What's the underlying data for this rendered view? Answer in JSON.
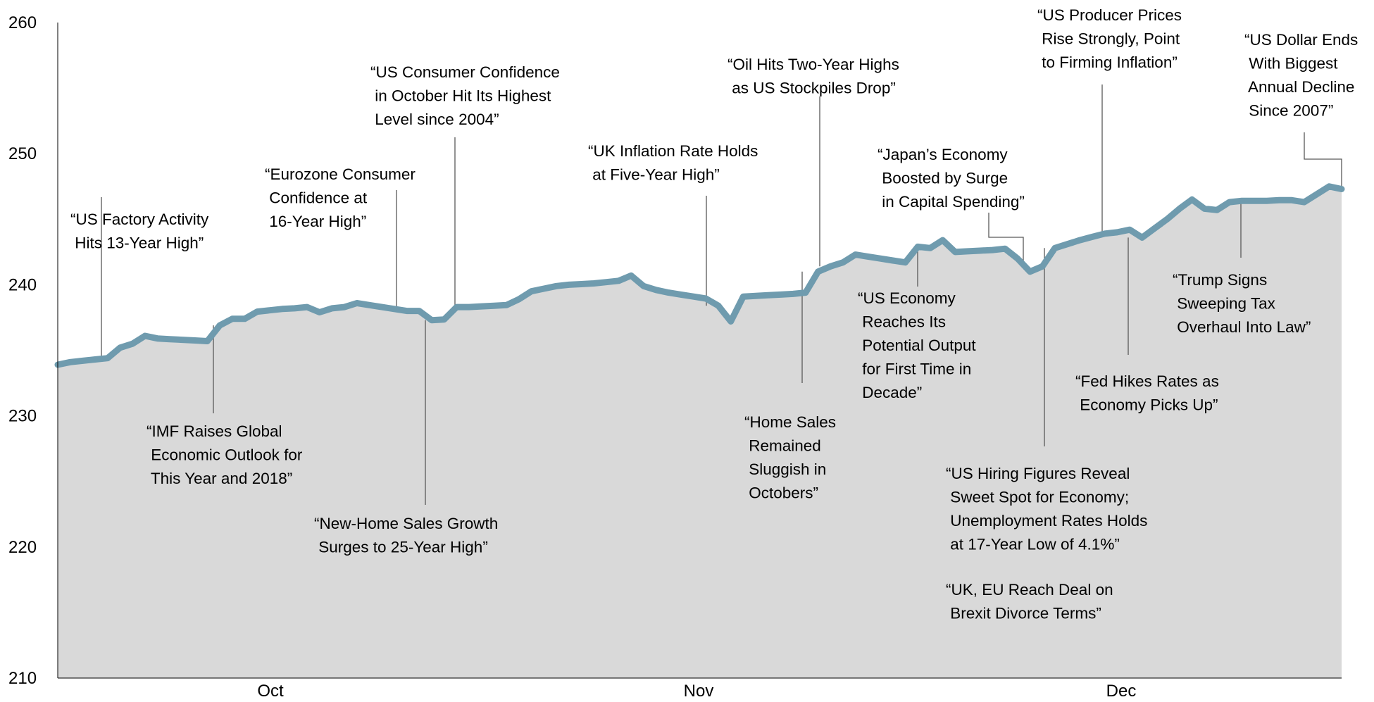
{
  "chart_data": {
    "type": "area",
    "title": "",
    "xlabel": "",
    "ylabel": "",
    "ylim": [
      210,
      260
    ],
    "yticks": [
      210,
      220,
      230,
      240,
      250,
      260
    ],
    "xticks": [
      "Oct",
      "Nov",
      "Dec"
    ],
    "grid": false,
    "legend": "none",
    "line_color": "#6f9bae",
    "fill_color": "#d9d9d9",
    "series": [
      {
        "values": [
          233.9,
          234.1,
          234.2,
          234.3,
          234.4,
          235.2,
          235.5,
          236.1,
          235.9,
          235.85,
          235.8,
          235.75,
          235.7,
          236.9,
          237.4,
          237.4,
          237.95,
          238.05,
          238.15,
          238.2,
          238.3,
          237.9,
          238.2,
          238.3,
          238.6,
          238.45,
          238.3,
          238.15,
          238.0,
          238.0,
          237.3,
          237.35,
          238.3,
          238.3,
          238.35,
          238.4,
          238.45,
          238.9,
          239.5,
          239.7,
          239.9,
          240.0,
          240.05,
          240.1,
          240.2,
          240.3,
          240.7,
          239.9,
          239.6,
          239.4,
          239.25,
          239.1,
          238.95,
          238.4,
          237.2,
          239.1,
          239.15,
          239.2,
          239.25,
          239.3,
          239.4,
          241.0,
          241.4,
          241.7,
          242.3,
          242.15,
          242.0,
          241.85,
          241.7,
          242.9,
          242.8,
          243.4,
          242.5,
          242.55,
          242.6,
          242.65,
          242.75,
          242.0,
          241.0,
          241.4,
          242.8,
          243.1,
          243.4,
          243.65,
          243.9,
          244.0,
          244.2,
          243.6,
          244.3,
          245.0,
          245.8,
          246.5,
          245.8,
          245.7,
          246.3,
          246.4,
          246.4,
          246.4,
          246.45,
          246.45,
          246.3,
          246.9,
          247.5,
          247.3
        ]
      }
    ],
    "annotations": [
      {
        "lines": [
          "“US Factory Activity",
          " Hits 13-Year High”"
        ],
        "index": 4,
        "side": "above"
      },
      {
        "lines": [
          "“IMF Raises Global",
          " Economic Outlook for",
          " This Year and 2018”"
        ],
        "index": 13,
        "side": "below"
      },
      {
        "lines": [
          "“Eurozone Consumer",
          " Confidence at",
          " 16-Year High”"
        ],
        "index": 28,
        "side": "above"
      },
      {
        "lines": [
          "“New-Home Sales Growth",
          " Surges to 25-Year High”"
        ],
        "index": 30,
        "side": "below"
      },
      {
        "lines": [
          "“US Consumer Confidence",
          " in October Hit Its Highest",
          " Level since 2004”"
        ],
        "index": 32,
        "side": "above"
      },
      {
        "lines": [
          "“UK Inflation Rate Holds",
          " at Five-Year High”"
        ],
        "index": 53,
        "side": "above"
      },
      {
        "lines": [
          "“Oil Hits Two-Year Highs",
          " as US Stockpiles Drop”"
        ],
        "index": 62,
        "side": "above"
      },
      {
        "lines": [
          "“Home Sales",
          " Remained",
          " Sluggish in",
          " Octobers”"
        ],
        "index": 61,
        "side": "below"
      },
      {
        "lines": [
          "“Japan’s Economy",
          " Boosted by Surge",
          " in Capital Spending”"
        ],
        "index": 79,
        "side": "above"
      },
      {
        "lines": [
          "“US Economy",
          " Reaches Its",
          " Potential Output",
          " for First Time in",
          " Decade”"
        ],
        "index": 70,
        "side": "below"
      },
      {
        "lines": [
          "“US Hiring Figures Reveal",
          " Sweet Spot for Economy;",
          " Unemployment Rates Holds",
          " at 17-Year Low of 4.1%”"
        ],
        "index": 80,
        "side": "below"
      },
      {
        "lines": [
          "“UK, EU Reach Deal on",
          " Brexit Divorce Terms”"
        ],
        "index": null,
        "side": "below"
      },
      {
        "lines": [
          "“US Producer Prices",
          " Rise Strongly, Point",
          " to Firming Inflation”"
        ],
        "index": 84,
        "side": "above"
      },
      {
        "lines": [
          "“Fed Hikes Rates as",
          " Economy Picks Up”"
        ],
        "index": 87,
        "side": "below"
      },
      {
        "lines": [
          "“Trump Signs",
          " Sweeping Tax",
          " Overhaul Into Law”"
        ],
        "index": 96,
        "side": "below"
      },
      {
        "lines": [
          "“US Dollar Ends",
          " With Biggest",
          " Annual Decline",
          " Since 2007”"
        ],
        "index": 103,
        "side": "above"
      }
    ]
  }
}
